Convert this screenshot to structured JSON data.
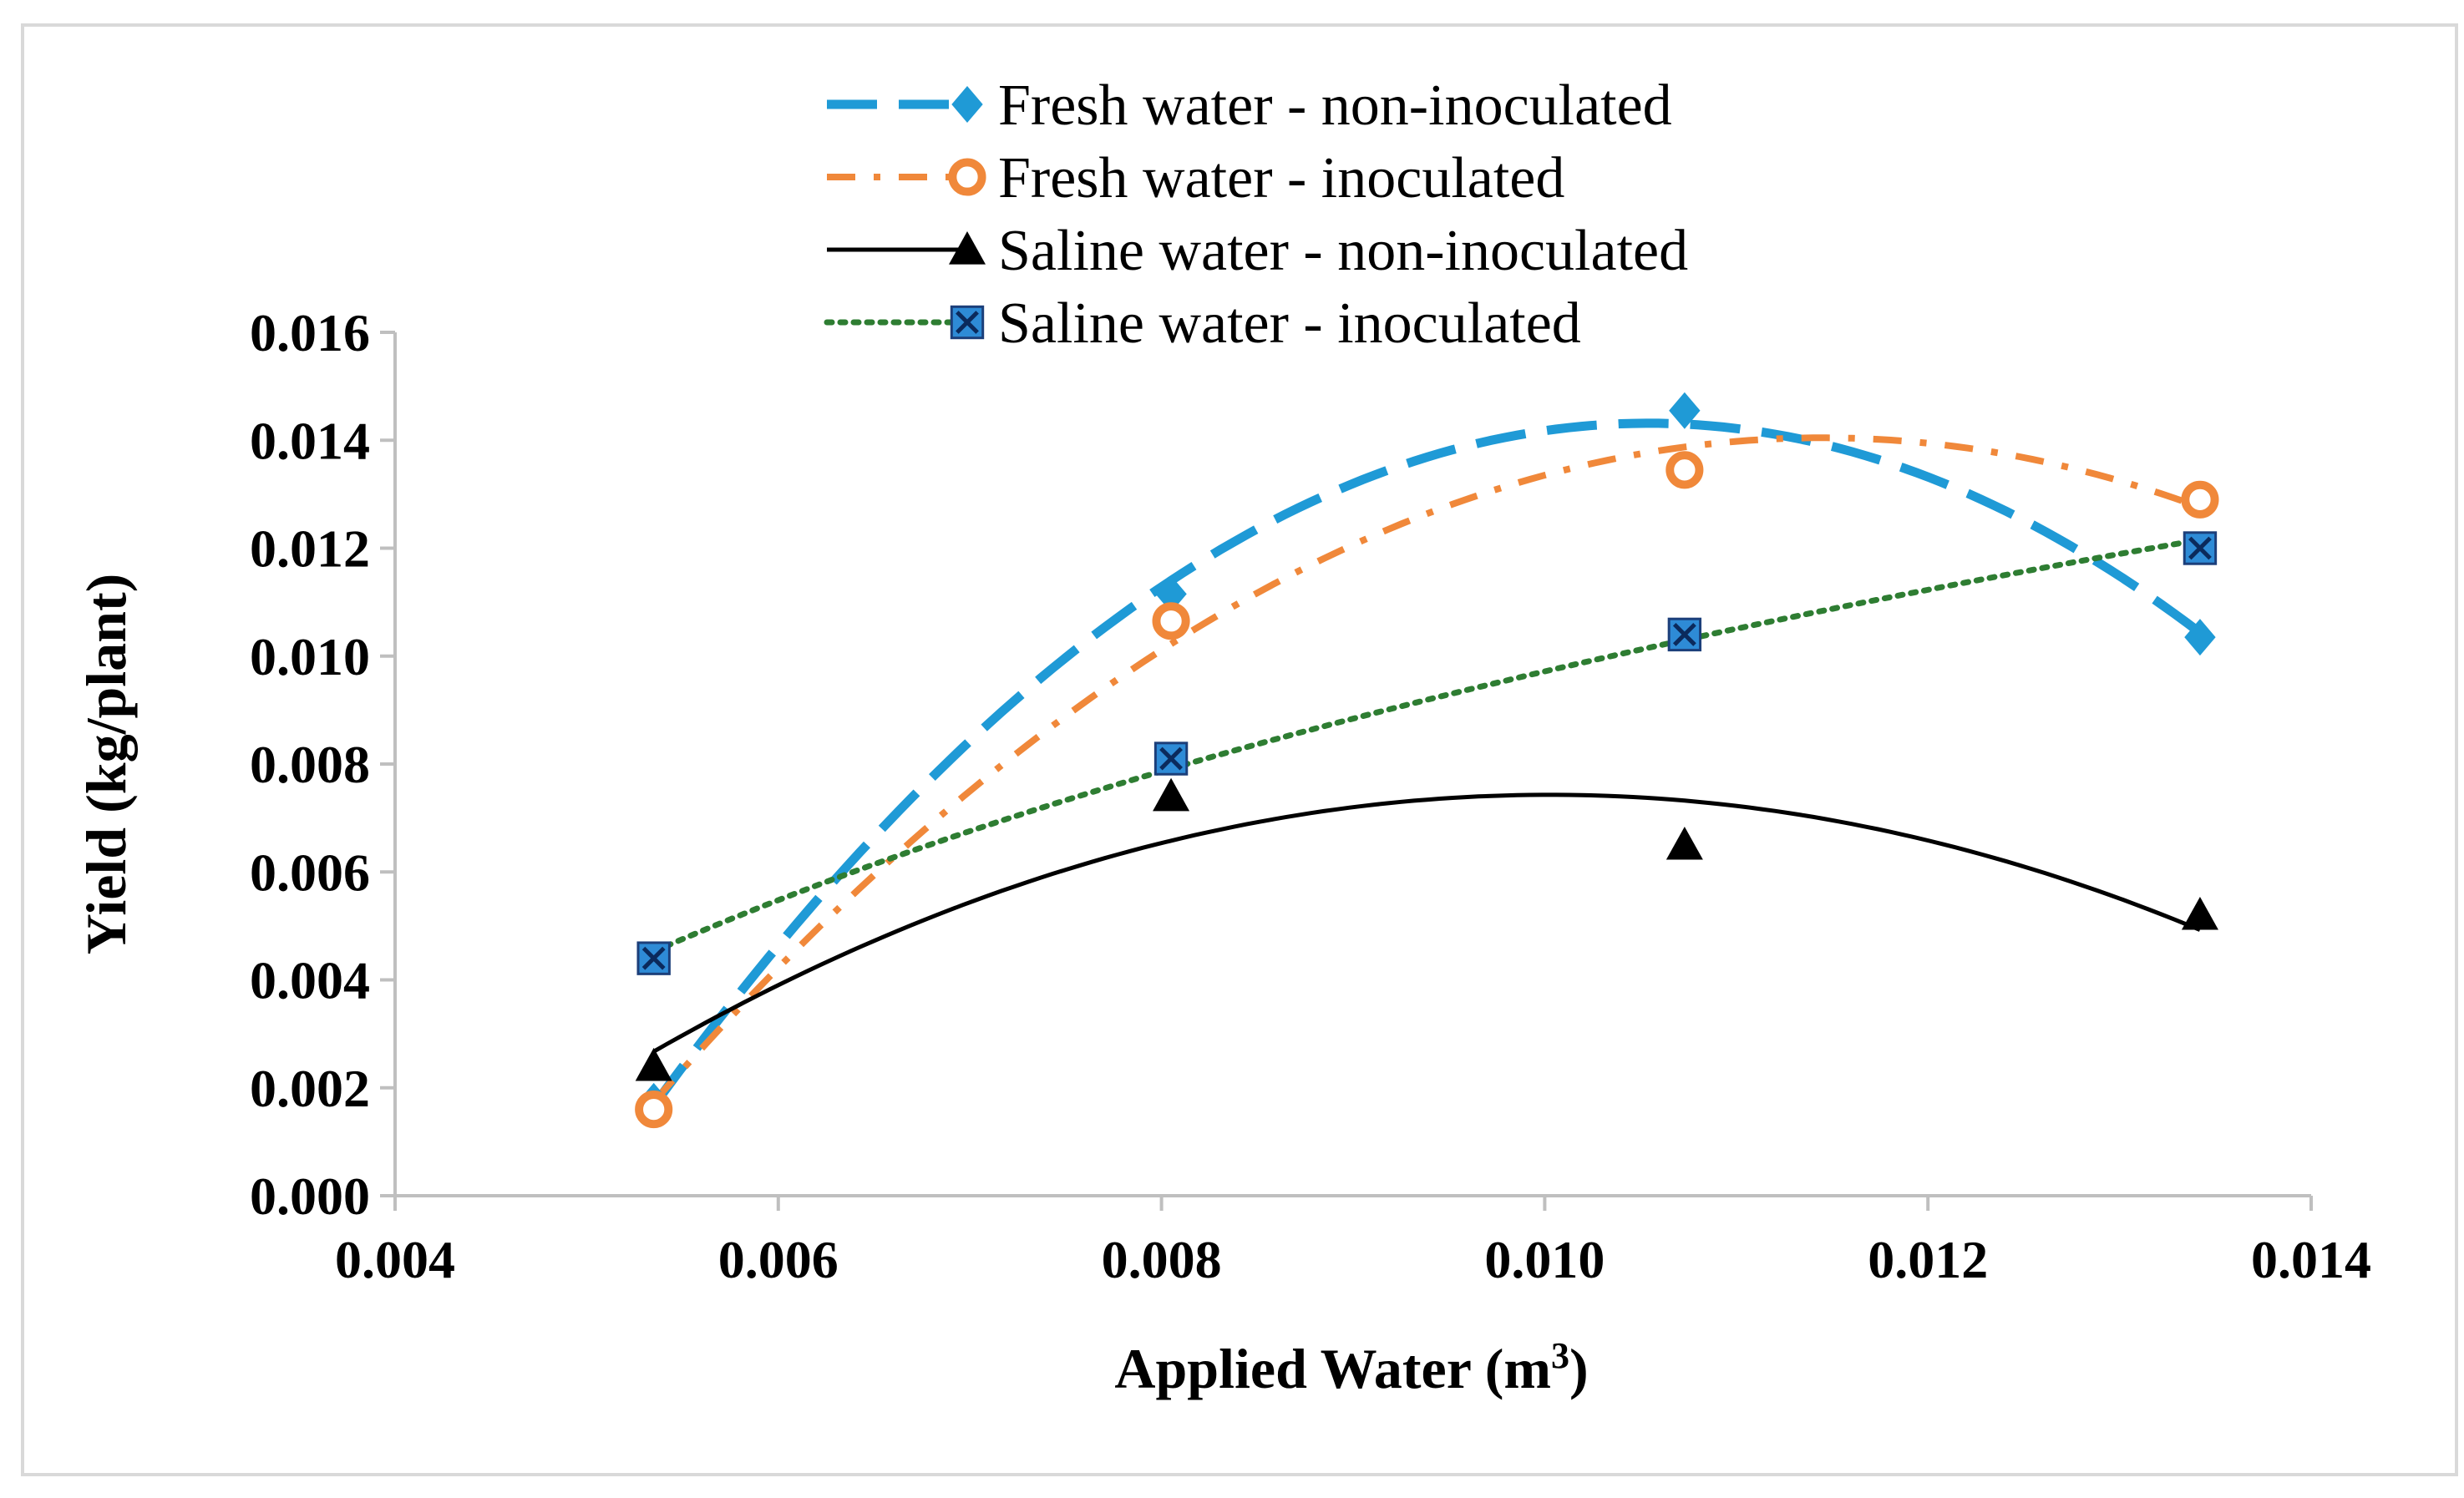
{
  "chart_data": {
    "type": "scatter",
    "xlabel": "Applied Water (m",
    "xlabel_sup": "3",
    "xlabel_end": ")",
    "ylabel": "Yield (kg/plant)",
    "xlim": [
      0.004,
      0.014
    ],
    "ylim": [
      0.0,
      0.016
    ],
    "x_ticks": [
      "0.004",
      "0.006",
      "0.008",
      "0.010",
      "0.012",
      "0.014"
    ],
    "y_ticks": [
      "0.000",
      "0.002",
      "0.004",
      "0.006",
      "0.008",
      "0.010",
      "0.012",
      "0.014",
      "0.016"
    ],
    "grid": false,
    "legend_position": "top-center",
    "series": [
      {
        "name": "Fresh water - non-inoculated",
        "color": "#1f9ad6",
        "marker": "diamond",
        "line_style": "long-dash",
        "trendline": "polynomial-2",
        "x": [
          0.00535,
          0.00805,
          0.01073,
          0.01342
        ],
        "y": [
          0.00175,
          0.01115,
          0.01455,
          0.01035
        ]
      },
      {
        "name": "Fresh water - inoculated",
        "color": "#f0883a",
        "marker": "circle",
        "line_style": "dash-dot",
        "trendline": "polynomial-2",
        "x": [
          0.00535,
          0.00805,
          0.01073,
          0.01342
        ],
        "y": [
          0.0016,
          0.01065,
          0.01345,
          0.0129
        ]
      },
      {
        "name": "Saline water - non-inoculated",
        "color": "#000000",
        "marker": "triangle",
        "line_style": "solid",
        "trendline": "polynomial-2",
        "x": [
          0.00535,
          0.00805,
          0.01073,
          0.01342
        ],
        "y": [
          0.0024,
          0.0074,
          0.0065,
          0.0052
        ]
      },
      {
        "name": "Saline water - inoculated",
        "color": "#2e7d32",
        "marker": "x-square",
        "marker_color": "#2e8bd6",
        "line_style": "dotted",
        "trendline": "logarithmic",
        "x": [
          0.00535,
          0.00805,
          0.01073,
          0.01342
        ],
        "y": [
          0.0044,
          0.0081,
          0.0104,
          0.012
        ]
      }
    ]
  }
}
